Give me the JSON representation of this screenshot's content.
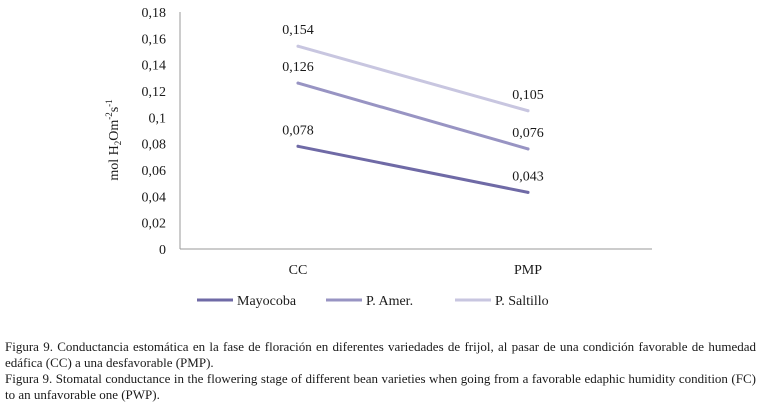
{
  "chart_data": {
    "type": "line",
    "categories": [
      "CC",
      "PMP"
    ],
    "series": [
      {
        "name": "Mayocoba",
        "values": [
          0.078,
          0.043
        ],
        "labels": [
          "0,078",
          "0,043"
        ],
        "color": "#6f6aa6"
      },
      {
        "name": "P. Amer.",
        "values": [
          0.126,
          0.076
        ],
        "labels": [
          "0,126",
          "0,076"
        ],
        "color": "#9894c3"
      },
      {
        "name": "P. Saltillo",
        "values": [
          0.154,
          0.105
        ],
        "labels": [
          "0,154",
          "0,105"
        ],
        "color": "#c8c6e0"
      }
    ],
    "ylim": [
      0,
      0.18
    ],
    "yticks": [
      0,
      0.02,
      0.04,
      0.06,
      0.08,
      0.1,
      0.12,
      0.14,
      0.16,
      0.18
    ],
    "ytick_labels": [
      "0",
      "0,02",
      "0,04",
      "0,06",
      "0,08",
      "0,1",
      "0,12",
      "0,14",
      "0,16",
      "0,18"
    ],
    "ylabel": "mol H2Om-2s-1",
    "ylabel_parts": {
      "a": "mol H",
      "sub": "2",
      "b": "Om",
      "sup1": "-2",
      "c": "s",
      "sup2": "-1"
    },
    "xlabel": "",
    "legend": "bottom",
    "grid": false
  },
  "caption": {
    "es": "Figura 9. Conductancia estomática en la fase de floración en diferentes variedades de frijol, al pasar de una condición favorable de humedad edáfica (CC) a una desfavorable (PMP).",
    "en": "Figura 9. Stomatal conductance in the flowering stage of different bean varieties when going from a favorable edaphic humidity condition (FC) to an unfavorable one (PWP)."
  }
}
